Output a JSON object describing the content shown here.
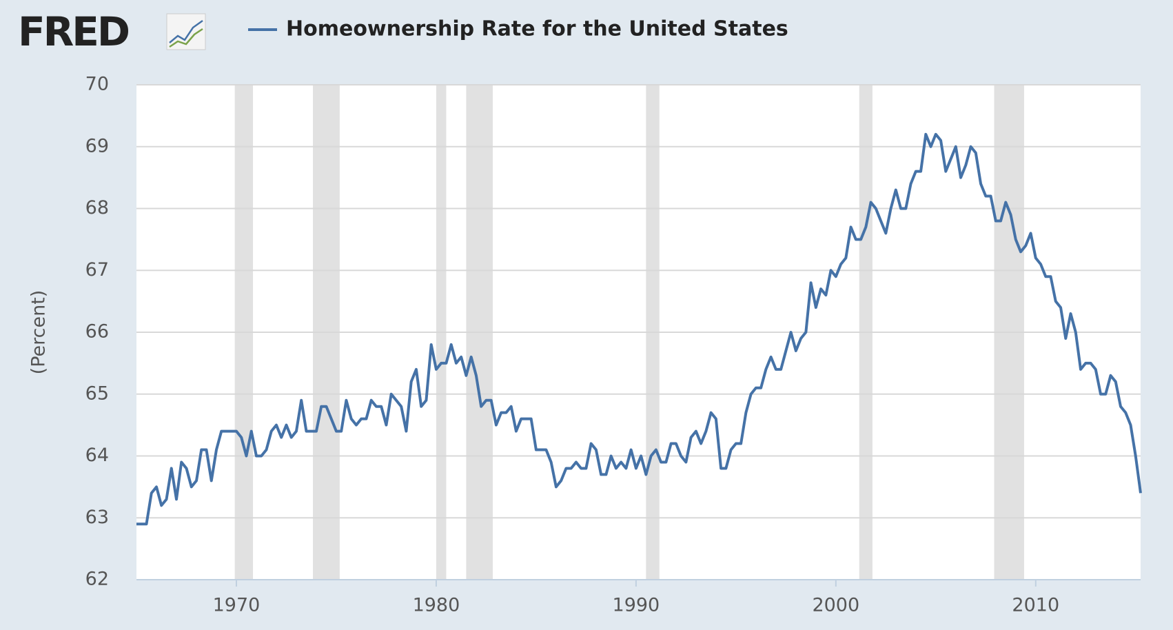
{
  "chart_data": {
    "type": "line",
    "logo": "FRED",
    "title": "Homeownership Rate for the United States",
    "ylabel": "(Percent)",
    "ylim": [
      62,
      70
    ],
    "yticks": [
      62,
      63,
      64,
      65,
      66,
      67,
      68,
      69,
      70
    ],
    "xlim": [
      1965,
      2015.25
    ],
    "xticks": [
      1970,
      1980,
      1990,
      2000,
      2010
    ],
    "grid": true,
    "recessions": [
      [
        1969.92,
        1970.83
      ],
      [
        1973.83,
        1975.17
      ],
      [
        1980.0,
        1980.5
      ],
      [
        1981.5,
        1982.83
      ],
      [
        1990.5,
        1991.17
      ],
      [
        2001.17,
        2001.83
      ],
      [
        2007.92,
        2009.42
      ]
    ],
    "x": [
      1965,
      1965.25,
      1965.5,
      1965.75,
      1966,
      1966.25,
      1966.5,
      1966.75,
      1967,
      1967.25,
      1967.5,
      1967.75,
      1968,
      1968.25,
      1968.5,
      1968.75,
      1969,
      1969.25,
      1969.5,
      1969.75,
      1970,
      1970.25,
      1970.5,
      1970.75,
      1971,
      1971.25,
      1971.5,
      1971.75,
      1972,
      1972.25,
      1972.5,
      1972.75,
      1973,
      1973.25,
      1973.5,
      1973.75,
      1974,
      1974.25,
      1974.5,
      1974.75,
      1975,
      1975.25,
      1975.5,
      1975.75,
      1976,
      1976.25,
      1976.5,
      1976.75,
      1977,
      1977.25,
      1977.5,
      1977.75,
      1978,
      1978.25,
      1978.5,
      1978.75,
      1979,
      1979.25,
      1979.5,
      1979.75,
      1980,
      1980.25,
      1980.5,
      1980.75,
      1981,
      1981.25,
      1981.5,
      1981.75,
      1982,
      1982.25,
      1982.5,
      1982.75,
      1983,
      1983.25,
      1983.5,
      1983.75,
      1984,
      1984.25,
      1984.5,
      1984.75,
      1985,
      1985.25,
      1985.5,
      1985.75,
      1986,
      1986.25,
      1986.5,
      1986.75,
      1987,
      1987.25,
      1987.5,
      1987.75,
      1988,
      1988.25,
      1988.5,
      1988.75,
      1989,
      1989.25,
      1989.5,
      1989.75,
      1990,
      1990.25,
      1990.5,
      1990.75,
      1991,
      1991.25,
      1991.5,
      1991.75,
      1992,
      1992.25,
      1992.5,
      1992.75,
      1993,
      1993.25,
      1993.5,
      1993.75,
      1994,
      1994.25,
      1994.5,
      1994.75,
      1995,
      1995.25,
      1995.5,
      1995.75,
      1996,
      1996.25,
      1996.5,
      1996.75,
      1997,
      1997.25,
      1997.5,
      1997.75,
      1998,
      1998.25,
      1998.5,
      1998.75,
      1999,
      1999.25,
      1999.5,
      1999.75,
      2000,
      2000.25,
      2000.5,
      2000.75,
      2001,
      2001.25,
      2001.5,
      2001.75,
      2002,
      2002.25,
      2002.5,
      2002.75,
      2003,
      2003.25,
      2003.5,
      2003.75,
      2004,
      2004.25,
      2004.5,
      2004.75,
      2005,
      2005.25,
      2005.5,
      2005.75,
      2006,
      2006.25,
      2006.5,
      2006.75,
      2007,
      2007.25,
      2007.5,
      2007.75,
      2008,
      2008.25,
      2008.5,
      2008.75,
      2009,
      2009.25,
      2009.5,
      2009.75,
      2010,
      2010.25,
      2010.5,
      2010.75,
      2011,
      2011.25,
      2011.5,
      2011.75,
      2012,
      2012.25,
      2012.5,
      2012.75,
      2013,
      2013.25,
      2013.5,
      2013.75,
      2014,
      2014.25,
      2014.5,
      2014.75,
      2015,
      2015.25
    ],
    "series": [
      {
        "name": "Homeownership Rate for the United States",
        "color": "#4572a7",
        "values": [
          62.9,
          62.9,
          62.9,
          63.4,
          63.5,
          63.2,
          63.3,
          63.8,
          63.3,
          63.9,
          63.8,
          63.5,
          63.6,
          64.1,
          64.1,
          63.6,
          64.1,
          64.4,
          64.4,
          64.4,
          64.4,
          64.3,
          64.0,
          64.4,
          64.0,
          64.0,
          64.1,
          64.4,
          64.5,
          64.3,
          64.5,
          64.3,
          64.4,
          64.9,
          64.4,
          64.4,
          64.4,
          64.8,
          64.8,
          64.6,
          64.4,
          64.4,
          64.9,
          64.6,
          64.5,
          64.6,
          64.6,
          64.9,
          64.8,
          64.8,
          64.5,
          65.0,
          64.9,
          64.8,
          64.4,
          65.2,
          65.4,
          64.8,
          64.9,
          65.8,
          65.4,
          65.5,
          65.5,
          65.8,
          65.5,
          65.6,
          65.3,
          65.6,
          65.3,
          64.8,
          64.9,
          64.9,
          64.5,
          64.7,
          64.7,
          64.8,
          64.4,
          64.6,
          64.6,
          64.6,
          64.1,
          64.1,
          64.1,
          63.9,
          63.5,
          63.6,
          63.8,
          63.8,
          63.9,
          63.8,
          63.8,
          64.2,
          64.1,
          63.7,
          63.7,
          64.0,
          63.8,
          63.9,
          63.8,
          64.1,
          63.8,
          64.0,
          63.7,
          64.0,
          64.1,
          63.9,
          63.9,
          64.2,
          64.2,
          64.0,
          63.9,
          64.3,
          64.4,
          64.2,
          64.4,
          64.7,
          64.6,
          63.8,
          63.8,
          64.1,
          64.2,
          64.2,
          64.7,
          65.0,
          65.1,
          65.1,
          65.4,
          65.6,
          65.4,
          65.4,
          65.7,
          66.0,
          65.7,
          65.9,
          66.0,
          66.8,
          66.4,
          66.7,
          66.6,
          67.0,
          66.9,
          67.1,
          67.2,
          67.7,
          67.5,
          67.5,
          67.7,
          68.1,
          68.0,
          67.8,
          67.6,
          68.0,
          68.3,
          68.0,
          68.0,
          68.4,
          68.6,
          68.6,
          69.2,
          69.0,
          69.2,
          69.1,
          68.6,
          68.8,
          69.0,
          68.5,
          68.7,
          69.0,
          68.9,
          68.4,
          68.2,
          68.2,
          67.8,
          67.8,
          68.1,
          67.9,
          67.5,
          67.3,
          67.4,
          67.6,
          67.2,
          67.1,
          66.9,
          66.9,
          66.5,
          66.4,
          65.9,
          66.3,
          66.0,
          65.4,
          65.5,
          65.5,
          65.4,
          65.0,
          65.0,
          65.3,
          65.2,
          64.8,
          64.7,
          64.5,
          64.0,
          63.4
        ]
      }
    ]
  }
}
